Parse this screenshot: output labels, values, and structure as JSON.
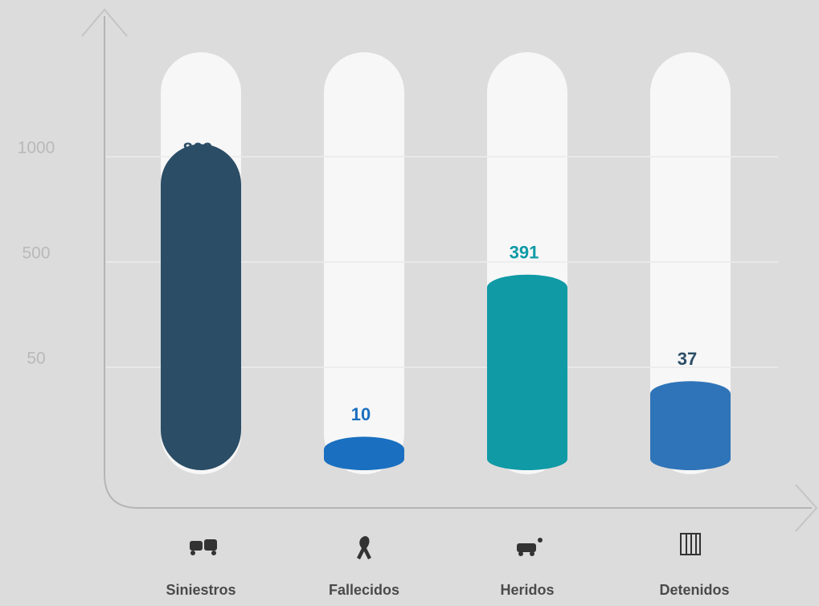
{
  "chart_data": {
    "type": "bar",
    "categories": [
      "Siniestros",
      "Fallecidos",
      "Heridos",
      "Detenidos"
    ],
    "values": [
      869,
      10,
      391,
      37
    ],
    "colors": [
      "#2b4d66",
      "#1a6fc0",
      "#0f9aa6",
      "#2f74b8"
    ],
    "label_colors": [
      "#2b4d66",
      "#1a6fc0",
      "#0f9aa6",
      "#2b4d66"
    ],
    "ylim": [
      0,
      1000
    ],
    "yticks": [
      1000,
      500,
      50
    ],
    "grid": true
  }
}
